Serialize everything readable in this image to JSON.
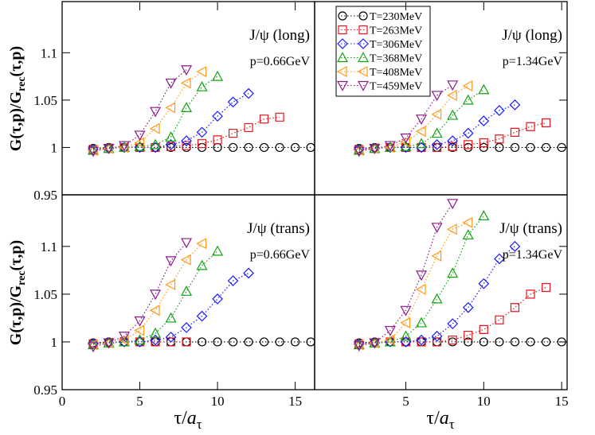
{
  "labels": {
    "y": [
      "G(τ,p)/G",
      "rec",
      "(τ,p)"
    ],
    "x": [
      "τ/",
      "a",
      "τ"
    ]
  },
  "chart_data": [
    {
      "type": "line",
      "title": "J/ψ (long)",
      "subtitle": "p=0.66GeV",
      "xlim": [
        0,
        16.25
      ],
      "ylim": [
        0.95,
        1.154
      ],
      "yticks": [
        0.95,
        1,
        1.05,
        1.1
      ],
      "series": [
        {
          "name": "T=230MeV",
          "color": "#000000",
          "marker": "circle",
          "x": [
            2,
            3,
            4,
            5,
            6,
            7,
            8,
            9,
            10,
            11,
            12,
            13,
            14,
            15,
            16
          ],
          "values": [
            0.999,
            1,
            1,
            1,
            1,
            1,
            1,
            1,
            1,
            1,
            1,
            1,
            1,
            1,
            1
          ]
        },
        {
          "name": "T=263MeV",
          "color": "#e8141c",
          "marker": "square",
          "x": [
            2,
            3,
            4,
            5,
            6,
            7,
            8,
            9,
            10,
            11,
            12,
            13,
            14
          ],
          "values": [
            0.998,
            0.999,
            1,
            1,
            1,
            1.001,
            1.002,
            1.004,
            1.008,
            1.015,
            1.021,
            1.03,
            1.032
          ]
        },
        {
          "name": "T=306MeV",
          "color": "#1a1aff",
          "marker": "diamond",
          "x": [
            2,
            3,
            4,
            5,
            6,
            7,
            8,
            9,
            10,
            11,
            12
          ],
          "values": [
            0.998,
            0.999,
            1,
            1,
            1,
            1.003,
            1.007,
            1.016,
            1.033,
            1.048,
            1.057
          ]
        },
        {
          "name": "T=368MeV",
          "color": "#13a313",
          "marker": "triangle-up",
          "x": [
            2,
            3,
            4,
            5,
            6,
            7,
            8,
            9,
            10
          ],
          "values": [
            0.997,
            0.999,
            1,
            1.001,
            1.003,
            1.011,
            1.042,
            1.064,
            1.075
          ]
        },
        {
          "name": "T=408MeV",
          "color": "#ff9a1a",
          "marker": "triangle-left",
          "x": [
            2,
            3,
            4,
            5,
            6,
            7,
            8,
            9
          ],
          "values": [
            0.997,
            0.999,
            1,
            1.005,
            1.02,
            1.042,
            1.068,
            1.08
          ]
        },
        {
          "name": "T=459MeV",
          "color": "#8b1a8b",
          "marker": "triangle-down",
          "x": [
            2,
            3,
            4,
            5,
            6,
            7,
            8
          ],
          "values": [
            0.996,
            0.999,
            1.002,
            1.013,
            1.038,
            1.068,
            1.082
          ]
        }
      ]
    },
    {
      "type": "line",
      "title": "J/ψ (long)",
      "subtitle": "p=1.34GeV",
      "xlim": [
        -0.85,
        15.35
      ],
      "ylim": [
        0.95,
        1.154
      ],
      "legend": "upper left",
      "series": [
        {
          "name": "T=230MeV",
          "color": "#000000",
          "marker": "circle",
          "x": [
            2,
            3,
            4,
            5,
            6,
            7,
            8,
            9,
            10,
            11,
            12,
            13,
            14,
            15
          ],
          "values": [
            0.999,
            1,
            1,
            1,
            1,
            1,
            1,
            1,
            1,
            1,
            1,
            1,
            1,
            1
          ]
        },
        {
          "name": "T=263MeV",
          "color": "#e8141c",
          "marker": "square",
          "x": [
            2,
            3,
            4,
            5,
            6,
            7,
            8,
            9,
            10,
            11,
            12,
            13,
            14
          ],
          "values": [
            0.998,
            0.999,
            1,
            1,
            1,
            1,
            1.001,
            1.003,
            1.005,
            1.009,
            1.016,
            1.022,
            1.026
          ]
        },
        {
          "name": "T=306MeV",
          "color": "#1a1aff",
          "marker": "diamond",
          "x": [
            2,
            3,
            4,
            5,
            6,
            7,
            8,
            9,
            10,
            11,
            12
          ],
          "values": [
            0.998,
            0.999,
            1,
            1,
            1,
            1.003,
            1.007,
            1.015,
            1.028,
            1.039,
            1.045
          ]
        },
        {
          "name": "T=368MeV",
          "color": "#13a313",
          "marker": "triangle-up",
          "x": [
            2,
            3,
            4,
            5,
            6,
            7,
            8,
            9,
            10
          ],
          "values": [
            0.997,
            0.999,
            1,
            1.001,
            1.004,
            1.015,
            1.034,
            1.05,
            1.061
          ]
        },
        {
          "name": "T=408MeV",
          "color": "#ff9a1a",
          "marker": "triangle-left",
          "x": [
            2,
            3,
            4,
            5,
            6,
            7,
            8,
            9
          ],
          "values": [
            0.997,
            0.999,
            1,
            1.006,
            1.017,
            1.035,
            1.055,
            1.065
          ]
        },
        {
          "name": "T=459MeV",
          "color": "#8b1a8b",
          "marker": "triangle-down",
          "x": [
            2,
            3,
            4,
            5,
            6,
            7,
            8
          ],
          "values": [
            0.996,
            0.999,
            1.002,
            1.01,
            1.03,
            1.055,
            1.066
          ]
        }
      ]
    },
    {
      "type": "line",
      "title": "J/ψ (trans)",
      "subtitle": "p=0.66GeV",
      "xlim": [
        0,
        16.25
      ],
      "ylim": [
        0.95,
        1.154
      ],
      "xticks": [
        0,
        5,
        10,
        15
      ],
      "yticks": [
        0.95,
        1,
        1.05,
        1.1
      ],
      "series": [
        {
          "name": "T=230MeV",
          "color": "#000000",
          "marker": "circle",
          "x": [
            2,
            3,
            4,
            5,
            6,
            7,
            8,
            9,
            10,
            11,
            12,
            13,
            14,
            15,
            16
          ],
          "values": [
            0.999,
            1,
            1,
            1,
            1,
            1,
            1,
            1,
            1,
            1,
            1,
            1,
            1,
            1,
            1
          ]
        },
        {
          "name": "T=263MeV",
          "color": "#e8141c",
          "marker": "square",
          "x": [
            2,
            3,
            4,
            5,
            6,
            7,
            8
          ],
          "values": [
            0.998,
            0.999,
            1,
            1,
            1,
            1,
            1
          ]
        },
        {
          "name": "T=306MeV",
          "color": "#1a1aff",
          "marker": "diamond",
          "x": [
            2,
            3,
            4,
            5,
            6,
            7,
            8,
            9,
            10,
            11,
            12
          ],
          "values": [
            0.998,
            0.999,
            1,
            1,
            1.002,
            1.005,
            1.015,
            1.027,
            1.045,
            1.064,
            1.072
          ]
        },
        {
          "name": "T=368MeV",
          "color": "#13a313",
          "marker": "triangle-up",
          "x": [
            2,
            3,
            4,
            5,
            6,
            7,
            8,
            9,
            10
          ],
          "values": [
            0.997,
            0.999,
            1,
            1.002,
            1.009,
            1.025,
            1.053,
            1.08,
            1.095
          ]
        },
        {
          "name": "T=408MeV",
          "color": "#ff9a1a",
          "marker": "triangle-left",
          "x": [
            2,
            3,
            4,
            5,
            6,
            7,
            8,
            9
          ],
          "values": [
            0.997,
            0.999,
            1.002,
            1.012,
            1.033,
            1.06,
            1.086,
            1.103
          ]
        },
        {
          "name": "T=459MeV",
          "color": "#8b1a8b",
          "marker": "triangle-down",
          "x": [
            2,
            3,
            4,
            5,
            6,
            7,
            8
          ],
          "values": [
            0.995,
            0.999,
            1.006,
            1.022,
            1.05,
            1.085,
            1.104
          ]
        }
      ]
    },
    {
      "type": "line",
      "title": "J/ψ (trans)",
      "subtitle": "p=1.34GeV",
      "xlim": [
        -0.85,
        15.35
      ],
      "ylim": [
        0.95,
        1.154
      ],
      "xticks": [
        5,
        10,
        15
      ],
      "series": [
        {
          "name": "T=230MeV",
          "color": "#000000",
          "marker": "circle",
          "x": [
            2,
            3,
            4,
            5,
            6,
            7,
            8,
            9,
            10,
            11,
            12,
            13,
            14,
            15
          ],
          "values": [
            0.999,
            1,
            1,
            1,
            1,
            1,
            1,
            1,
            1,
            1,
            1,
            1,
            1,
            1
          ]
        },
        {
          "name": "T=263MeV",
          "color": "#e8141c",
          "marker": "square",
          "x": [
            2,
            3,
            4,
            5,
            6,
            7,
            8,
            9,
            10,
            11,
            12,
            13,
            14
          ],
          "values": [
            0.998,
            0.999,
            1,
            1,
            1,
            1,
            1.002,
            1.007,
            1.013,
            1.023,
            1.036,
            1.05,
            1.057
          ]
        },
        {
          "name": "T=306MeV",
          "color": "#1a1aff",
          "marker": "diamond",
          "x": [
            2,
            3,
            4,
            5,
            6,
            7,
            8,
            9,
            10,
            11,
            12
          ],
          "values": [
            0.998,
            0.999,
            1,
            1,
            1.002,
            1.006,
            1.019,
            1.036,
            1.061,
            1.087,
            1.1
          ]
        },
        {
          "name": "T=368MeV",
          "color": "#13a313",
          "marker": "triangle-up",
          "x": [
            2,
            3,
            4,
            5,
            6,
            7,
            8,
            9,
            10
          ],
          "values": [
            0.997,
            0.999,
            1,
            1.006,
            1.02,
            1.045,
            1.072,
            1.112,
            1.132
          ]
        },
        {
          "name": "T=408MeV",
          "color": "#ff9a1a",
          "marker": "triangle-left",
          "x": [
            2,
            3,
            4,
            5,
            6,
            7,
            8,
            9
          ],
          "values": [
            0.997,
            0.999,
            1.002,
            1.02,
            1.055,
            1.09,
            1.118,
            1.125
          ]
        },
        {
          "name": "T=459MeV",
          "color": "#8b1a8b",
          "marker": "triangle-down",
          "x": [
            2,
            3,
            4,
            5,
            6,
            7,
            8
          ],
          "values": [
            0.996,
            0.999,
            1.012,
            1.033,
            1.07,
            1.12,
            1.145
          ]
        }
      ]
    }
  ]
}
